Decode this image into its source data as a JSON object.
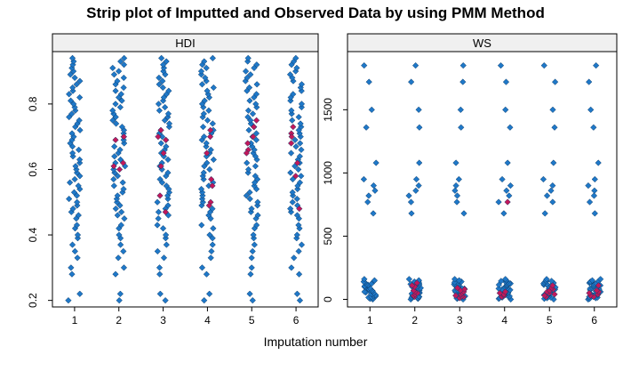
{
  "chart_data": {
    "type": "scatter",
    "title": "Strip plot of Imputted and Observed Data by using PMM Method",
    "xlabel": "Imputation number",
    "x_categories": [
      "1",
      "2",
      "3",
      "4",
      "5",
      "6"
    ],
    "colors": {
      "observed": "#1f78c8",
      "imputed": "#c2185b",
      "strip": "#f0f0f0"
    },
    "panels": [
      {
        "name": "HDI",
        "ylim": [
          0.18,
          0.96
        ],
        "yticks": [
          0.2,
          0.4,
          0.6,
          0.8
        ],
        "ytick_labels": [
          "0.2",
          "0.4",
          "0.6",
          "0.8"
        ],
        "observed_values": [
          0.2,
          0.22,
          0.28,
          0.3,
          0.33,
          0.35,
          0.37,
          0.39,
          0.4,
          0.42,
          0.43,
          0.45,
          0.46,
          0.47,
          0.48,
          0.49,
          0.5,
          0.51,
          0.52,
          0.53,
          0.54,
          0.55,
          0.56,
          0.57,
          0.58,
          0.59,
          0.6,
          0.61,
          0.62,
          0.63,
          0.64,
          0.65,
          0.66,
          0.67,
          0.68,
          0.69,
          0.7,
          0.71,
          0.72,
          0.73,
          0.74,
          0.75,
          0.76,
          0.77,
          0.78,
          0.79,
          0.8,
          0.81,
          0.82,
          0.83,
          0.84,
          0.85,
          0.86,
          0.87,
          0.88,
          0.89,
          0.9,
          0.91,
          0.92,
          0.93,
          0.94
        ],
        "imputed_values": [
          [],
          [
            0.61,
            0.62,
            0.69,
            0.7,
            0.6
          ],
          [
            0.69,
            0.7,
            0.61,
            0.65,
            0.52,
            0.47,
            0.72
          ],
          [
            0.72,
            0.7,
            0.65,
            0.57,
            0.55,
            0.5,
            0.49
          ],
          [
            0.75,
            0.73,
            0.66,
            0.68,
            0.7,
            0.65
          ],
          [
            0.73,
            0.71,
            0.68,
            0.7,
            0.62,
            0.58,
            0.48
          ]
        ]
      },
      {
        "name": "WS",
        "ylim": [
          -60,
          1960
        ],
        "yticks": [
          0,
          500,
          1000,
          1500
        ],
        "ytick_labels": [
          "0",
          "500",
          "1000",
          "1500"
        ],
        "observed_values": [
          0,
          5,
          10,
          15,
          20,
          25,
          30,
          35,
          40,
          45,
          50,
          55,
          60,
          65,
          70,
          75,
          80,
          85,
          90,
          95,
          100,
          105,
          110,
          115,
          120,
          125,
          130,
          135,
          140,
          145,
          150,
          160,
          680,
          770,
          820,
          860,
          900,
          950,
          1080,
          1360,
          1500,
          1720,
          1850
        ],
        "imputed_values": [
          [],
          [
            20,
            30,
            40,
            50,
            60,
            70,
            100,
            110,
            130
          ],
          [
            10,
            20,
            25,
            30,
            40,
            50,
            60,
            70,
            80,
            90
          ],
          [
            20,
            30,
            40,
            50,
            60,
            770
          ],
          [
            20,
            30,
            40,
            50,
            60,
            70,
            80,
            90,
            110
          ],
          [
            20,
            30,
            40,
            50,
            60,
            70,
            110
          ]
        ]
      }
    ]
  }
}
